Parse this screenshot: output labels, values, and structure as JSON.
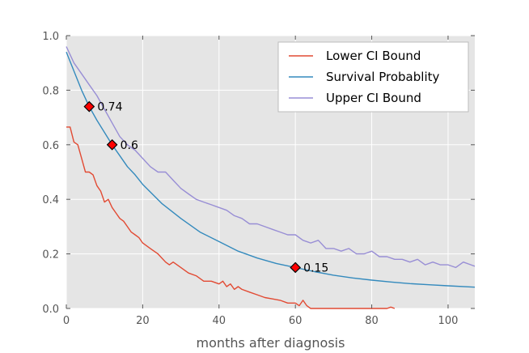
{
  "chart_data": {
    "type": "line",
    "title": "",
    "xlabel": "months after diagnosis",
    "ylabel": "",
    "xlim": [
      0,
      107
    ],
    "ylim": [
      0.0,
      1.0
    ],
    "grid": true,
    "legend_position": "top-right",
    "x_ticks": [
      0,
      20,
      40,
      60,
      80,
      100
    ],
    "y_ticks": [
      0.0,
      0.2,
      0.4,
      0.6,
      0.8,
      1.0
    ],
    "x_tick_labels": [
      "0",
      "20",
      "40",
      "60",
      "80",
      "100"
    ],
    "y_tick_labels": [
      "0.0",
      "0.2",
      "0.4",
      "0.6",
      "0.8",
      "1.0"
    ],
    "series": [
      {
        "name": "Lower CI Bound",
        "color": "#e24a33",
        "x": [
          0,
          1,
          2,
          3,
          4,
          5,
          6,
          7,
          8,
          9,
          10,
          11,
          12,
          13,
          14,
          15,
          16,
          17,
          18,
          19,
          20,
          22,
          24,
          26,
          27,
          28,
          30,
          32,
          34,
          36,
          38,
          40,
          41,
          42,
          43,
          44,
          45,
          46,
          48,
          50,
          52,
          54,
          56,
          58,
          60,
          61,
          62,
          63,
          64,
          84,
          85,
          86
        ],
        "values": [
          0.665,
          0.665,
          0.61,
          0.6,
          0.55,
          0.5,
          0.5,
          0.49,
          0.45,
          0.43,
          0.39,
          0.4,
          0.37,
          0.35,
          0.33,
          0.32,
          0.3,
          0.28,
          0.27,
          0.26,
          0.24,
          0.22,
          0.2,
          0.17,
          0.16,
          0.17,
          0.15,
          0.13,
          0.12,
          0.1,
          0.1,
          0.09,
          0.1,
          0.08,
          0.09,
          0.07,
          0.08,
          0.07,
          0.06,
          0.05,
          0.04,
          0.035,
          0.03,
          0.02,
          0.02,
          0.01,
          0.03,
          0.01,
          0.0,
          0.0,
          0.005,
          0.0
        ]
      },
      {
        "name": "Survival Probablity",
        "color": "#348abd",
        "x": [
          0,
          2,
          4,
          6,
          8,
          10,
          12,
          14,
          16,
          18,
          20,
          25,
          30,
          35,
          40,
          45,
          50,
          55,
          60,
          65,
          70,
          75,
          80,
          85,
          90,
          95,
          100,
          107
        ],
        "values": [
          0.94,
          0.87,
          0.8,
          0.74,
          0.69,
          0.645,
          0.6,
          0.56,
          0.52,
          0.49,
          0.455,
          0.385,
          0.33,
          0.28,
          0.245,
          0.21,
          0.185,
          0.165,
          0.15,
          0.135,
          0.122,
          0.112,
          0.104,
          0.097,
          0.091,
          0.087,
          0.083,
          0.078
        ]
      },
      {
        "name": "Upper CI Bound",
        "color": "#988ed5",
        "x": [
          0,
          2,
          4,
          6,
          8,
          10,
          12,
          14,
          16,
          18,
          20,
          22,
          24,
          26,
          28,
          30,
          32,
          34,
          36,
          38,
          40,
          42,
          44,
          46,
          48,
          50,
          52,
          54,
          56,
          58,
          60,
          62,
          64,
          66,
          68,
          70,
          72,
          74,
          76,
          78,
          80,
          82,
          84,
          86,
          88,
          90,
          92,
          94,
          96,
          98,
          100,
          102,
          104,
          106,
          107
        ],
        "values": [
          0.96,
          0.9,
          0.86,
          0.82,
          0.78,
          0.73,
          0.68,
          0.63,
          0.6,
          0.58,
          0.55,
          0.52,
          0.5,
          0.5,
          0.47,
          0.44,
          0.42,
          0.4,
          0.39,
          0.38,
          0.37,
          0.36,
          0.34,
          0.33,
          0.31,
          0.31,
          0.3,
          0.29,
          0.28,
          0.27,
          0.27,
          0.25,
          0.24,
          0.25,
          0.22,
          0.22,
          0.21,
          0.22,
          0.2,
          0.2,
          0.21,
          0.19,
          0.19,
          0.18,
          0.18,
          0.17,
          0.18,
          0.16,
          0.17,
          0.16,
          0.16,
          0.15,
          0.17,
          0.16,
          0.155
        ]
      }
    ],
    "markers": [
      {
        "x": 6,
        "y": 0.74,
        "label": "0.74",
        "color": "#ff0000"
      },
      {
        "x": 12,
        "y": 0.6,
        "label": "0.6",
        "color": "#ff0000"
      },
      {
        "x": 60,
        "y": 0.15,
        "label": "0.15",
        "color": "#ff0000"
      }
    ],
    "colors": {
      "plot_background": "#e5e5e5",
      "grid": "#ffffff",
      "tick_text": "#555555",
      "legend_background": "#ffffff",
      "legend_border": "#bcbcbc"
    }
  }
}
